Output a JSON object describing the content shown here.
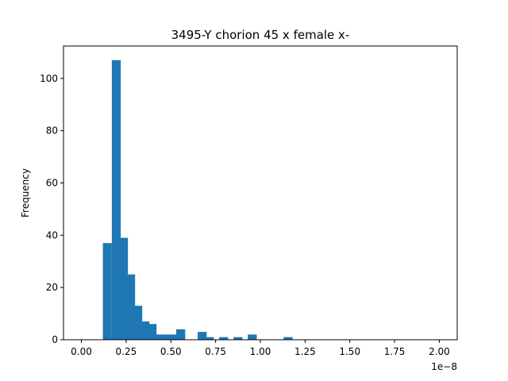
{
  "chart_data": {
    "type": "bar",
    "title": "3495-Y chorion 45 x female x-",
    "xlabel": "",
    "ylabel": "Frequency",
    "x_offset_label": "1e−8",
    "xlim": [
      -0.1,
      2.1
    ],
    "ylim": [
      0,
      112.4
    ],
    "grid": false,
    "legend": "none",
    "color": "#1f77b4",
    "bin_width": 0.05,
    "bins": [
      {
        "x0": 0.12,
        "value": 37
      },
      {
        "x0": 0.17,
        "value": 107
      },
      {
        "x0": 0.21,
        "value": 39
      },
      {
        "x0": 0.25,
        "value": 25
      },
      {
        "x0": 0.29,
        "value": 13
      },
      {
        "x0": 0.33,
        "value": 7
      },
      {
        "x0": 0.37,
        "value": 6
      },
      {
        "x0": 0.41,
        "value": 2
      },
      {
        "x0": 0.45,
        "value": 2
      },
      {
        "x0": 0.49,
        "value": 2
      },
      {
        "x0": 0.53,
        "value": 4
      },
      {
        "x0": 0.57,
        "value": 0
      },
      {
        "x0": 0.61,
        "value": 0
      },
      {
        "x0": 0.65,
        "value": 3
      },
      {
        "x0": 0.69,
        "value": 1
      },
      {
        "x0": 0.73,
        "value": 0
      },
      {
        "x0": 0.77,
        "value": 1
      },
      {
        "x0": 0.81,
        "value": 0
      },
      {
        "x0": 0.85,
        "value": 1
      },
      {
        "x0": 0.89,
        "value": 0
      },
      {
        "x0": 0.93,
        "value": 2
      },
      {
        "x0": 0.97,
        "value": 0
      },
      {
        "x0": 1.01,
        "value": 0
      },
      {
        "x0": 1.05,
        "value": 0
      },
      {
        "x0": 1.09,
        "value": 0
      },
      {
        "x0": 1.13,
        "value": 1
      }
    ],
    "x_ticks": [
      {
        "value": 0.0,
        "label": "0.00"
      },
      {
        "value": 0.25,
        "label": "0.25"
      },
      {
        "value": 0.5,
        "label": "0.50"
      },
      {
        "value": 0.75,
        "label": "0.75"
      },
      {
        "value": 1.0,
        "label": "1.00"
      },
      {
        "value": 1.25,
        "label": "1.25"
      },
      {
        "value": 1.5,
        "label": "1.50"
      },
      {
        "value": 1.75,
        "label": "1.75"
      },
      {
        "value": 2.0,
        "label": "2.00"
      }
    ],
    "y_ticks": [
      {
        "value": 0,
        "label": "0"
      },
      {
        "value": 20,
        "label": "20"
      },
      {
        "value": 40,
        "label": "40"
      },
      {
        "value": 60,
        "label": "60"
      },
      {
        "value": 80,
        "label": "80"
      },
      {
        "value": 100,
        "label": "100"
      }
    ]
  }
}
